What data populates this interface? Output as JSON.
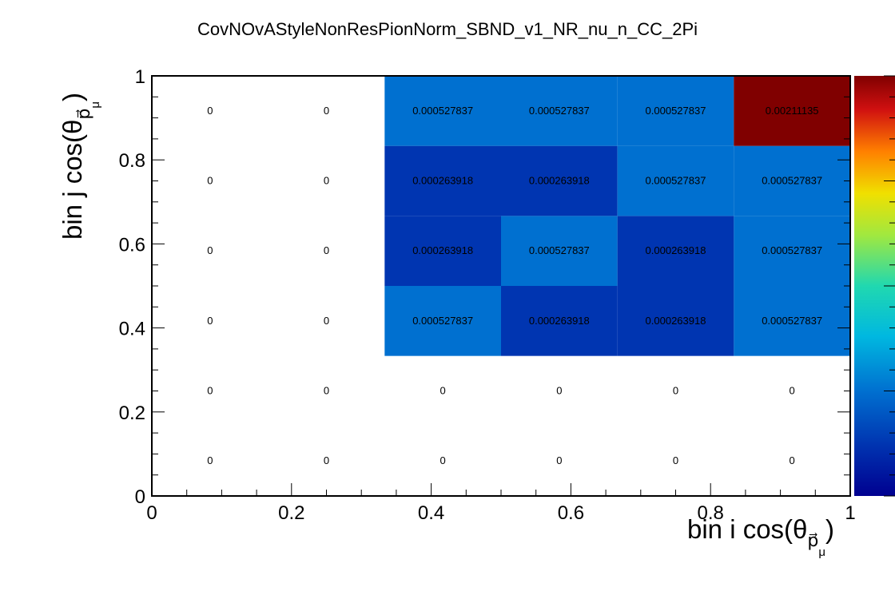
{
  "chart_data": {
    "type": "heatmap",
    "title": "CovNOvAStyleNonResPionNorm_SBND_v1_NR_nu_n_CC_2Pi",
    "xlabel": "bin i cos(θ",
    "xlabel_sub": "p⃗",
    "xlabel_subsub": "μ",
    "xlabel_close": ")",
    "ylabel": "bin j cos(θ",
    "ylabel_sub": "p⃗",
    "ylabel_subsub": "μ",
    "ylabel_close": ")",
    "xlim": [
      0,
      1
    ],
    "ylim": [
      0,
      1
    ],
    "x_ticks": [
      "0",
      "0.2",
      "0.4",
      "0.6",
      "0.8",
      "1"
    ],
    "y_ticks": [
      "0",
      "0.2",
      "0.4",
      "0.6",
      "0.8",
      "1"
    ],
    "x_bins": 6,
    "y_bins": 6,
    "z_range": [
      0,
      0.00211135
    ],
    "colormap": "rainbow",
    "rows_bottom_to_top": [
      [
        "0",
        "0",
        "0",
        "0",
        "0",
        "0"
      ],
      [
        "0",
        "0",
        "0",
        "0",
        "0",
        "0"
      ],
      [
        "0",
        "0",
        "0.000527837",
        "0.000263918",
        "0.000263918",
        "0.000527837"
      ],
      [
        "0",
        "0",
        "0.000263918",
        "0.000527837",
        "0.000263918",
        "0.000527837"
      ],
      [
        "0",
        "0",
        "0.000263918",
        "0.000263918",
        "0.000527837",
        "0.000527837"
      ],
      [
        "0",
        "0",
        "0.000527837",
        "0.000527837",
        "0.000527837",
        "0.00211135"
      ]
    ]
  }
}
